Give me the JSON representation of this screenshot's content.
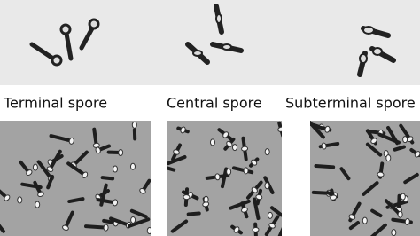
{
  "panels": [
    {
      "label": "Terminal spore"
    },
    {
      "label": "Central spore"
    },
    {
      "label": "Subterminal spore"
    }
  ]
}
